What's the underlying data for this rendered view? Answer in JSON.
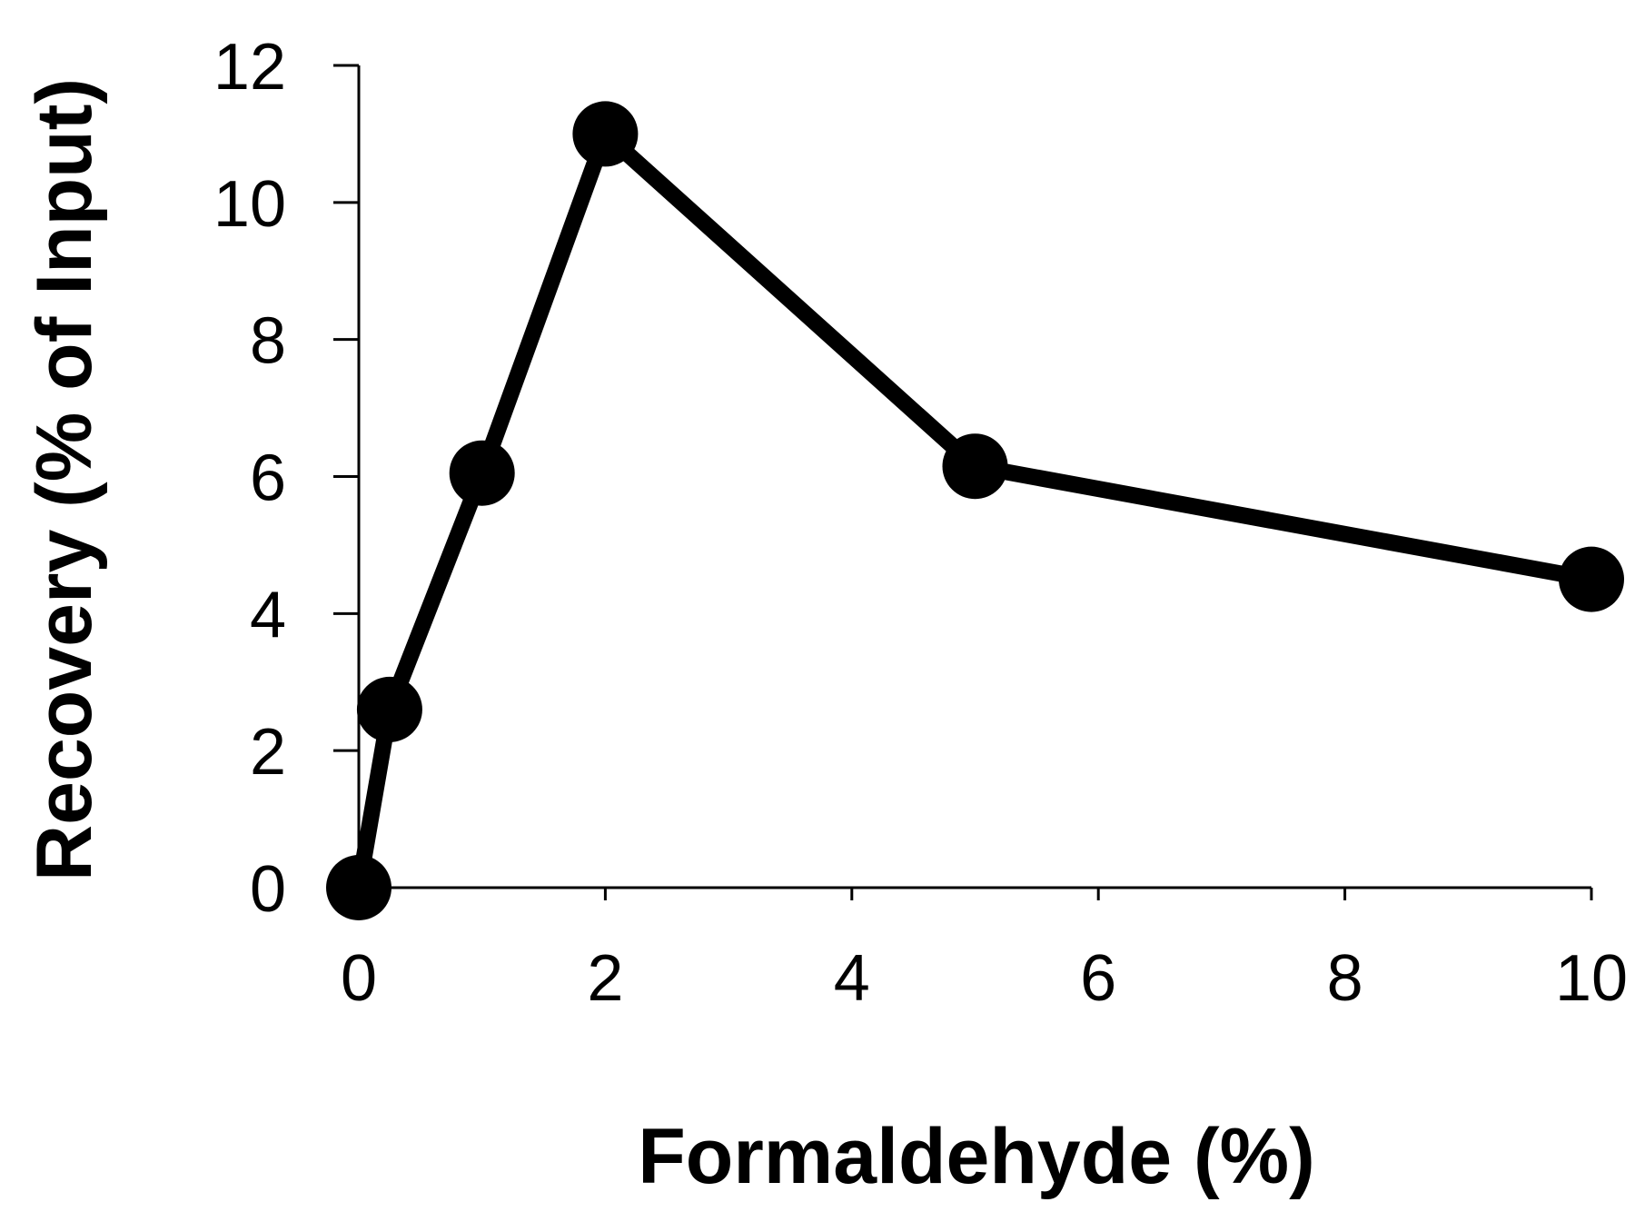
{
  "chart_data": {
    "type": "line",
    "title": "",
    "xlabel": "Formaldehyde (%)",
    "ylabel": "Recovery (% of Input)",
    "xlim": [
      0,
      10
    ],
    "ylim": [
      0,
      12
    ],
    "xticks": [
      0,
      2,
      4,
      6,
      8,
      10
    ],
    "yticks": [
      0,
      2,
      4,
      6,
      8,
      10,
      12
    ],
    "grid": false,
    "legend": "none",
    "series": [
      {
        "x": [
          0,
          0.25,
          1,
          2,
          5,
          10
        ],
        "y": [
          0,
          2.6,
          6.05,
          11.0,
          6.15,
          4.5
        ]
      }
    ],
    "colors": {
      "line": "#000000",
      "marker": "#000000",
      "axis": "#000000"
    }
  }
}
